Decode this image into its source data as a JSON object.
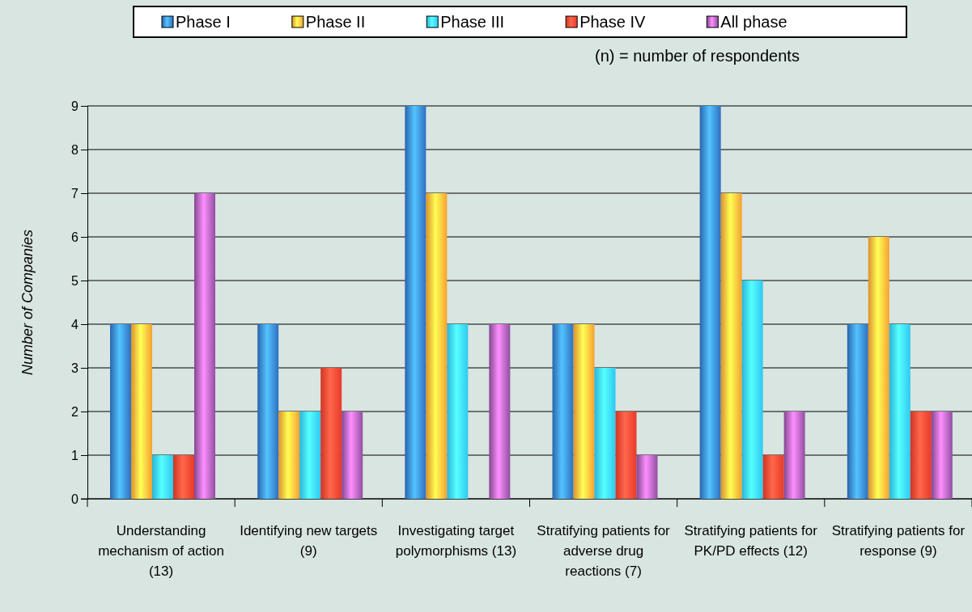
{
  "chart_data": {
    "type": "bar",
    "ylabel": "Number of Companies",
    "categories": [
      "Understanding mechanism of action (13)",
      "Identifying new targets (9)",
      "Investigating target polymorphisms (13)",
      "Stratifying patients for adverse drug reactions (7)",
      "Stratifying patients for PK/PD effects (12)",
      "Stratifying patients for response (9)"
    ],
    "series": [
      {
        "name": "Phase I",
        "color": "#2f6fc0",
        "values": [
          4,
          4,
          9,
          4,
          9,
          4
        ]
      },
      {
        "name": "Phase II",
        "color": "#f5a030",
        "values": [
          4,
          2,
          7,
          4,
          7,
          6
        ]
      },
      {
        "name": "Phase III",
        "color": "#30c8f0",
        "values": [
          1,
          2,
          4,
          3,
          5,
          4
        ]
      },
      {
        "name": "Phase IV",
        "color": "#e83a2a",
        "values": [
          1,
          3,
          0,
          2,
          1,
          2
        ]
      },
      {
        "name": "All phase",
        "color": "#9050a0",
        "values": [
          7,
          2,
          4,
          1,
          2,
          2
        ]
      }
    ],
    "ylim": [
      0,
      9
    ],
    "yticks": [
      0,
      1,
      2,
      3,
      4,
      5,
      6,
      7,
      8,
      9
    ],
    "grid": "y",
    "legend": "top",
    "annotations": [
      "(n) = number of respondents"
    ]
  }
}
